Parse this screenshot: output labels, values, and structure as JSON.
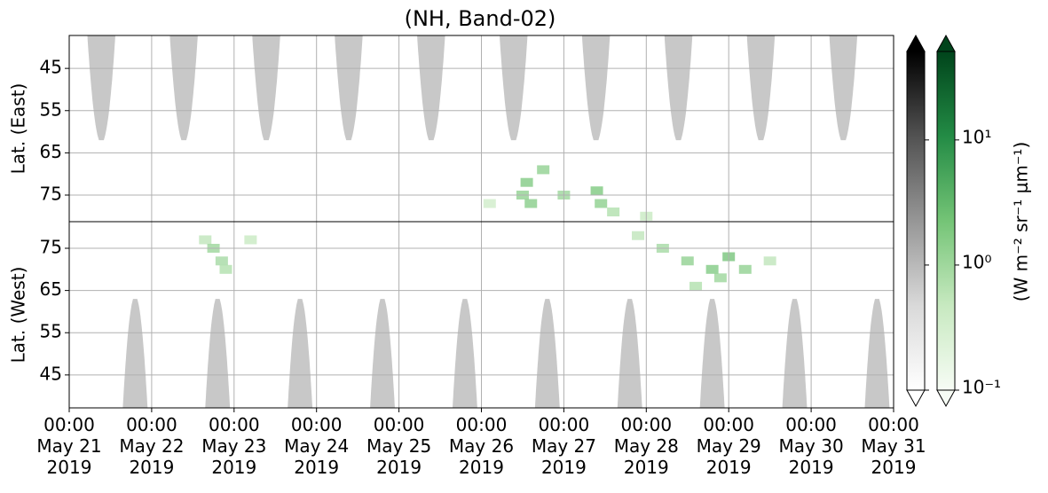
{
  "chart_data": {
    "type": "heatmap",
    "title": "(NH, Band-02)",
    "xlim": [
      "2019-05-21T00:00",
      "2019-05-31T00:00"
    ],
    "xticks": [
      {
        "value": "2019-05-21T00:00",
        "label": "00:00\nMay 21\n2019"
      },
      {
        "value": "2019-05-22T00:00",
        "label": "00:00\nMay 22\n2019"
      },
      {
        "value": "2019-05-23T00:00",
        "label": "00:00\nMay 23\n2019"
      },
      {
        "value": "2019-05-24T00:00",
        "label": "00:00\nMay 24\n2019"
      },
      {
        "value": "2019-05-25T00:00",
        "label": "00:00\nMay 25\n2019"
      },
      {
        "value": "2019-05-26T00:00",
        "label": "00:00\nMay 26\n2019"
      },
      {
        "value": "2019-05-27T00:00",
        "label": "00:00\nMay 27\n2019"
      },
      {
        "value": "2019-05-28T00:00",
        "label": "00:00\nMay 28\n2019"
      },
      {
        "value": "2019-05-29T00:00",
        "label": "00:00\nMay 29\n2019"
      },
      {
        "value": "2019-05-30T00:00",
        "label": "00:00\nMay 30\n2019"
      },
      {
        "value": "2019-05-31T00:00",
        "label": "00:00\nMay 31\n2019"
      }
    ],
    "grid": true,
    "mask_color": "#c8c8c8",
    "panels": [
      {
        "ylabel": "Lat. (East)",
        "ylim": [
          37.2,
          81.3
        ],
        "yticks": [
          45,
          55,
          65,
          75
        ],
        "y_inverted": true,
        "masks": [
          {
            "start": "2019-05-21T05:17",
            "end": "2019-05-21T13:26",
            "lat_edge": 62
          },
          {
            "start": "2019-05-22T05:17",
            "end": "2019-05-22T13:26",
            "lat_edge": 62
          },
          {
            "start": "2019-05-23T05:17",
            "end": "2019-05-23T13:26",
            "lat_edge": 62
          },
          {
            "start": "2019-05-24T05:17",
            "end": "2019-05-24T13:26",
            "lat_edge": 62
          },
          {
            "start": "2019-05-25T05:17",
            "end": "2019-05-25T13:26",
            "lat_edge": 62
          },
          {
            "start": "2019-05-26T05:17",
            "end": "2019-05-26T13:26",
            "lat_edge": 62
          },
          {
            "start": "2019-05-27T05:17",
            "end": "2019-05-27T13:26",
            "lat_edge": 62
          },
          {
            "start": "2019-05-28T05:17",
            "end": "2019-05-28T13:26",
            "lat_edge": 62
          },
          {
            "start": "2019-05-29T05:17",
            "end": "2019-05-29T13:26",
            "lat_edge": 62
          },
          {
            "start": "2019-05-30T05:17",
            "end": "2019-05-30T13:26",
            "lat_edge": 62
          }
        ],
        "cells": [
          {
            "time": "2019-05-26T02:24",
            "lat": 77,
            "value": 0.4
          },
          {
            "time": "2019-05-26T12:00",
            "lat": 75,
            "value": 1.5
          },
          {
            "time": "2019-05-26T13:12",
            "lat": 72,
            "value": 2
          },
          {
            "time": "2019-05-26T14:24",
            "lat": 77,
            "value": 1.8
          },
          {
            "time": "2019-05-26T18:00",
            "lat": 69,
            "value": 1.5
          },
          {
            "time": "2019-05-27T00:00",
            "lat": 75,
            "value": 1.2
          },
          {
            "time": "2019-05-27T09:36",
            "lat": 74,
            "value": 2.2
          },
          {
            "time": "2019-05-27T10:48",
            "lat": 77,
            "value": 1.6
          },
          {
            "time": "2019-05-27T14:24",
            "lat": 79,
            "value": 0.8
          },
          {
            "time": "2019-05-28T00:00",
            "lat": 80,
            "value": 0.5
          }
        ]
      },
      {
        "ylabel": "Lat. (West)",
        "ylim": [
          37.2,
          81.3
        ],
        "yticks": [
          45,
          55,
          65,
          75
        ],
        "y_inverted": false,
        "masks": [
          {
            "start": "2019-05-21T15:36",
            "end": "2019-05-21T22:48",
            "lat_edge": 63
          },
          {
            "start": "2019-05-22T15:36",
            "end": "2019-05-22T22:48",
            "lat_edge": 63
          },
          {
            "start": "2019-05-23T15:36",
            "end": "2019-05-23T22:48",
            "lat_edge": 63
          },
          {
            "start": "2019-05-24T15:36",
            "end": "2019-05-24T22:48",
            "lat_edge": 63
          },
          {
            "start": "2019-05-25T15:36",
            "end": "2019-05-25T22:48",
            "lat_edge": 63
          },
          {
            "start": "2019-05-26T15:36",
            "end": "2019-05-26T22:48",
            "lat_edge": 63
          },
          {
            "start": "2019-05-27T15:36",
            "end": "2019-05-27T22:48",
            "lat_edge": 63
          },
          {
            "start": "2019-05-28T15:36",
            "end": "2019-05-28T22:48",
            "lat_edge": 63
          },
          {
            "start": "2019-05-29T15:36",
            "end": "2019-05-29T22:48",
            "lat_edge": 63
          },
          {
            "start": "2019-05-30T15:36",
            "end": "2019-05-30T22:48",
            "lat_edge": 63
          }
        ],
        "cells": [
          {
            "time": "2019-05-22T15:36",
            "lat": 77,
            "value": 0.6
          },
          {
            "time": "2019-05-22T18:00",
            "lat": 75,
            "value": 1.2
          },
          {
            "time": "2019-05-22T20:24",
            "lat": 72,
            "value": 1.0
          },
          {
            "time": "2019-05-22T21:36",
            "lat": 70,
            "value": 0.8
          },
          {
            "time": "2019-05-23T04:48",
            "lat": 77,
            "value": 0.5
          },
          {
            "time": "2019-05-27T21:36",
            "lat": 78,
            "value": 0.6
          },
          {
            "time": "2019-05-28T04:48",
            "lat": 75,
            "value": 1.0
          },
          {
            "time": "2019-05-28T12:00",
            "lat": 72,
            "value": 1.5
          },
          {
            "time": "2019-05-28T14:24",
            "lat": 66,
            "value": 0.8
          },
          {
            "time": "2019-05-28T19:12",
            "lat": 70,
            "value": 2.0
          },
          {
            "time": "2019-05-28T21:36",
            "lat": 68,
            "value": 1.2
          },
          {
            "time": "2019-05-29T00:00",
            "lat": 73,
            "value": 2.5
          },
          {
            "time": "2019-05-29T04:48",
            "lat": 70,
            "value": 1.5
          },
          {
            "time": "2019-05-29T12:00",
            "lat": 72,
            "value": 0.6
          }
        ]
      }
    ],
    "colorbars": [
      {
        "colors": [
          "#ffffff",
          "#d9d9d9",
          "#969696",
          "#525252",
          "#000000"
        ]
      },
      {
        "colors": [
          "#f7fcf5",
          "#c7e9c0",
          "#74c476",
          "#238b45",
          "#00441b"
        ]
      }
    ],
    "clim": [
      0.1,
      51
    ],
    "log": true,
    "cticks": [
      {
        "value": 0.1,
        "label": "10⁻¹"
      },
      {
        "value": 1,
        "label": "10⁰"
      },
      {
        "value": 10,
        "label": "10¹"
      }
    ],
    "clabel": "(W m⁻² sr⁻¹ μm⁻¹)"
  }
}
